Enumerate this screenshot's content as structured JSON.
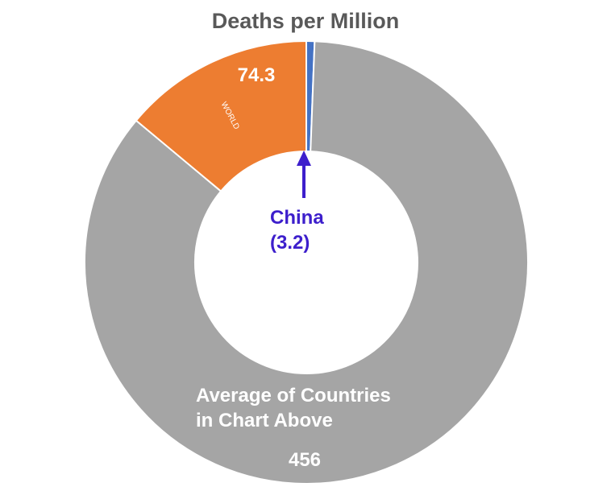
{
  "chart_data": {
    "type": "pie",
    "title": "Deaths per Million",
    "slices": [
      {
        "name": "China",
        "value": 3.2,
        "color": "#4472C4",
        "value_label": "(3.2)"
      },
      {
        "name": "Average of Countries in Chart Above",
        "value": 456,
        "color": "#A5A5A5",
        "label_lines": [
          "Average of Countries",
          "in Chart Above"
        ],
        "value_label": "456"
      },
      {
        "name": "WORLD",
        "value": 74.3,
        "color": "#ED7D31",
        "value_label": "74.3"
      }
    ],
    "annotation": {
      "text": "China",
      "color": "#3D1FCC"
    }
  }
}
